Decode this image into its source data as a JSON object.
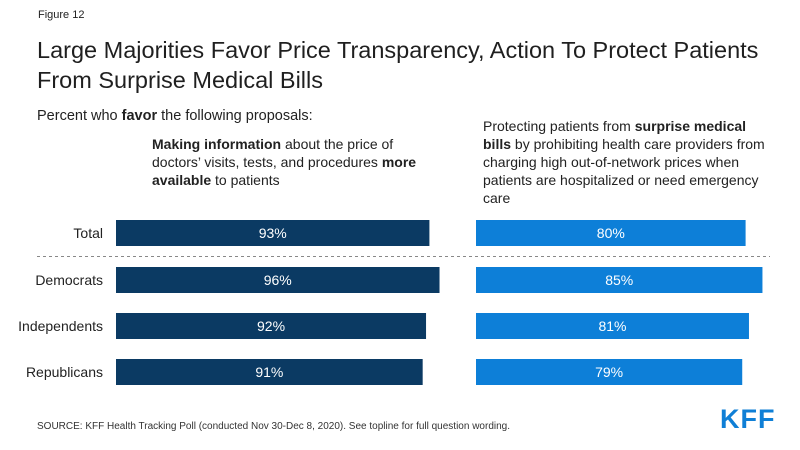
{
  "figure_label": "Figure 12",
  "title": "Large Majorities Favor Price Transparency, Action To Protect Patients From Surprise Medical Bills",
  "subtitle": {
    "pre": "Percent who ",
    "bold": "favor",
    "post": " the following proposals:"
  },
  "column_headers": [
    {
      "parts": [
        {
          "text": "Making information",
          "bold": true
        },
        {
          "text": " about the price of doctors’ visits, tests, and procedures ",
          "bold": false
        },
        {
          "text": "more available",
          "bold": true
        },
        {
          "text": " to patients",
          "bold": false
        }
      ]
    },
    {
      "parts": [
        {
          "text": "Protecting patients from ",
          "bold": false
        },
        {
          "text": "surprise medical bills",
          "bold": true
        },
        {
          "text": " by prohibiting health care providers from charging high out-of-network prices when patients are hospitalized or need emergency care",
          "bold": false
        }
      ]
    }
  ],
  "chart_data": {
    "type": "bar",
    "orientation": "horizontal",
    "categories": [
      "Total",
      "Democrats",
      "Independents",
      "Republicans"
    ],
    "series": [
      {
        "values": [
          93,
          96,
          92,
          91
        ],
        "color": "#0b3a63"
      },
      {
        "values": [
          80,
          85,
          81,
          79
        ],
        "color": "#0d7fd8"
      }
    ],
    "value_suffix": "%",
    "xlim": [
      0,
      100
    ],
    "divider_after_index": 0
  },
  "source": "SOURCE: KFF Health Tracking Poll (conducted Nov 30-Dec 8, 2020). See topline for full question wording.",
  "logo": "KFF"
}
